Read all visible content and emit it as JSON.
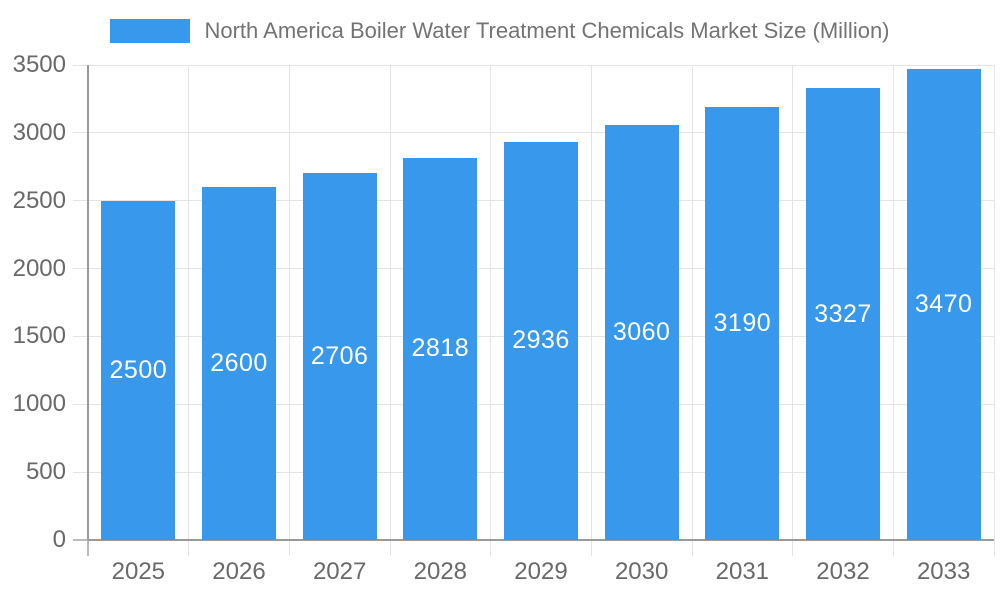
{
  "chart_data": {
    "type": "bar",
    "title": "North America Boiler Water Treatment Chemicals Market Size (Million)",
    "legend": {
      "label": "North America Boiler Water Treatment Chemicals Market Size (Million)",
      "position": "top"
    },
    "categories": [
      "2025",
      "2026",
      "2027",
      "2028",
      "2029",
      "2030",
      "2031",
      "2032",
      "2033"
    ],
    "series": [
      {
        "name": "North America Boiler Water Treatment Chemicals Market Size (Million)",
        "values": [
          2500,
          2600,
          2706,
          2818,
          2936,
          3060,
          3190,
          3327,
          3470
        ]
      }
    ],
    "xlabel": "",
    "ylabel": "",
    "ylim": [
      0,
      3500
    ],
    "yticks": [
      0,
      500,
      1000,
      1500,
      2000,
      2500,
      3000,
      3500
    ],
    "grid": true,
    "value_labels": "centered-inside-bars",
    "colors": {
      "bar": "#3898EC",
      "bar_value_text": "#FFFFFF",
      "gridline": "#E4E4E4",
      "axis_line": "#9A9A9A",
      "zero_tick_stub": "#BBBBBB",
      "axis_text": "#696969",
      "legend_text": "#737373",
      "background": "#FFFFFF"
    }
  }
}
